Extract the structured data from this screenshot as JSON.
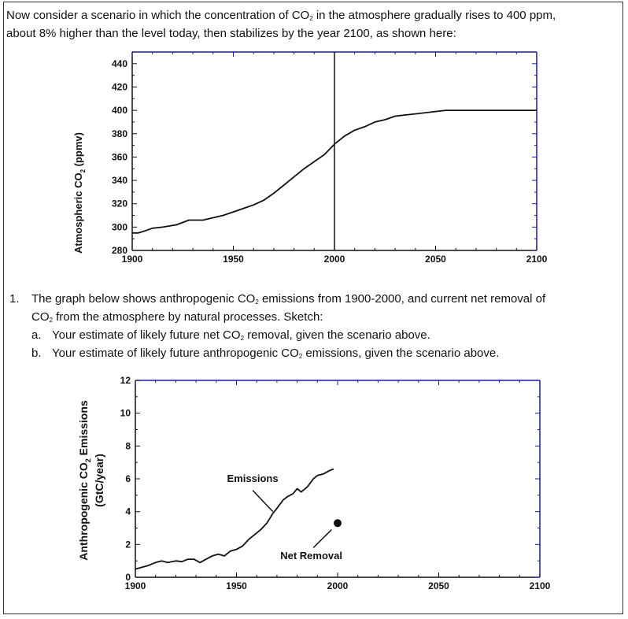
{
  "intro": {
    "part1": "Now consider a scenario in which the concentration of CO",
    "sub": "2",
    "part2": " in the atmosphere gradually rises to 400 ppm,",
    "part3": "about 8% higher than the level today, then stabilizes by the year 2100, as shown here:"
  },
  "question": {
    "number": "1.",
    "line1a": "The graph below shows anthropogenic CO",
    "line1b": " emissions from 1900-2000, and current net removal of",
    "line2a": "CO",
    "line2b": " from the atmosphere by natural processes. Sketch:",
    "a_label": "a.",
    "a_text1": "Your estimate of likely future net CO",
    "a_text2": " removal, given the scenario above.",
    "b_label": "b.",
    "b_text1": "Your estimate of likely future anthropogenic CO",
    "b_text2": " emissions, given the scenario above.",
    "sub": "2"
  },
  "colors": {
    "axis": "#1a1aa8",
    "line": "#111111"
  },
  "chart_data": [
    {
      "type": "line",
      "ylabel_main": "Atmospheric CO",
      "ylabel_sub": "2",
      "ylabel_unit": " (ppmv)",
      "xlim": [
        1900,
        2100
      ],
      "ylim": [
        280,
        450
      ],
      "xticks": [
        1900,
        1950,
        2000,
        2050,
        2100
      ],
      "yticks": [
        280,
        300,
        320,
        340,
        360,
        380,
        400,
        420,
        440
      ],
      "vertical_marker_x": 2000,
      "series": [
        {
          "x": [
            1900,
            1903,
            1905,
            1910,
            1915,
            1922,
            1928,
            1935,
            1940,
            1945,
            1950,
            1955,
            1960,
            1965,
            1970,
            1975,
            1980,
            1985,
            1990,
            1995,
            2000,
            2005,
            2010,
            2015,
            2020,
            2025,
            2030,
            2035,
            2040,
            2045,
            2050,
            2055,
            2058,
            2070,
            2080,
            2090,
            2100
          ],
          "y": [
            295,
            295,
            296,
            299,
            300,
            302,
            306,
            306,
            308,
            310,
            313,
            316,
            319,
            323,
            329,
            336,
            343,
            350,
            356,
            362,
            371,
            378,
            383,
            386,
            390,
            392,
            395,
            396,
            397,
            398,
            399,
            400,
            400,
            400,
            400,
            400,
            400
          ]
        }
      ]
    },
    {
      "type": "line",
      "ylabel_line1a": "Anthropogenic CO",
      "ylabel_sub": "2",
      "ylabel_line1b": " Emissions",
      "ylabel_line2": "(GtC/year)",
      "xlim": [
        1900,
        2100
      ],
      "ylim": [
        0,
        12
      ],
      "xticks": [
        1900,
        1950,
        2000,
        2050,
        2100
      ],
      "yticks": [
        0,
        2,
        4,
        6,
        8,
        10,
        12
      ],
      "series": [
        {
          "name": "Emissions",
          "x": [
            1900,
            1903,
            1906,
            1910,
            1913,
            1916,
            1920,
            1923,
            1926,
            1929,
            1932,
            1935,
            1938,
            1941,
            1944,
            1947,
            1950,
            1953,
            1956,
            1959,
            1962,
            1965,
            1968,
            1970,
            1973,
            1975,
            1978,
            1980,
            1982,
            1985,
            1988,
            1990,
            1993,
            1996,
            1998
          ],
          "y": [
            0.5,
            0.6,
            0.7,
            0.9,
            1.0,
            0.9,
            1.0,
            0.95,
            1.1,
            1.1,
            0.9,
            1.1,
            1.3,
            1.4,
            1.3,
            1.6,
            1.7,
            1.9,
            2.3,
            2.6,
            2.9,
            3.3,
            3.9,
            4.2,
            4.7,
            4.9,
            5.1,
            5.4,
            5.2,
            5.5,
            6.0,
            6.2,
            6.3,
            6.5,
            6.6
          ]
        }
      ],
      "points": [
        {
          "name": "Net Removal",
          "x": 2000,
          "y": 3.3
        }
      ],
      "annotations": [
        {
          "text": "Emissions",
          "x": 1958,
          "y": 5.8
        },
        {
          "text": "Net Removal",
          "x": 1987,
          "y": 1.1
        }
      ]
    }
  ]
}
